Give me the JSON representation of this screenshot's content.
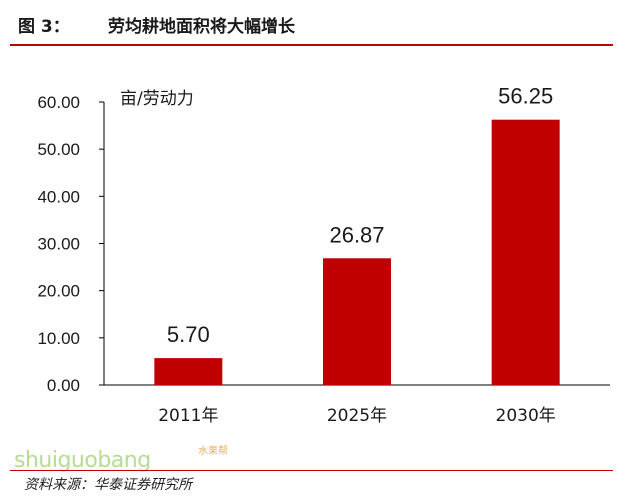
{
  "figure": {
    "label": "图 3：",
    "title": "劳均耕地面积将大幅增长",
    "source": "资料来源：华泰证券研究所"
  },
  "watermark": {
    "text": "shuiguobang",
    "cn": "水果帮"
  },
  "colors": {
    "bar": "#c00000",
    "rule": "#c00000",
    "text": "#1a1a1a"
  },
  "chart_data": {
    "type": "bar",
    "title": "",
    "ylabel": "亩/劳动力",
    "xlabel": "",
    "categories": [
      "2011年",
      "2025年",
      "2030年"
    ],
    "values": [
      5.7,
      26.87,
      56.25
    ],
    "data_labels": [
      "5.70",
      "26.87",
      "56.25"
    ],
    "ylim": [
      0,
      60
    ],
    "yticks": [
      "0.00",
      "10.00",
      "20.00",
      "30.00",
      "40.00",
      "50.00",
      "60.00"
    ],
    "grid": false,
    "legend": "none"
  }
}
